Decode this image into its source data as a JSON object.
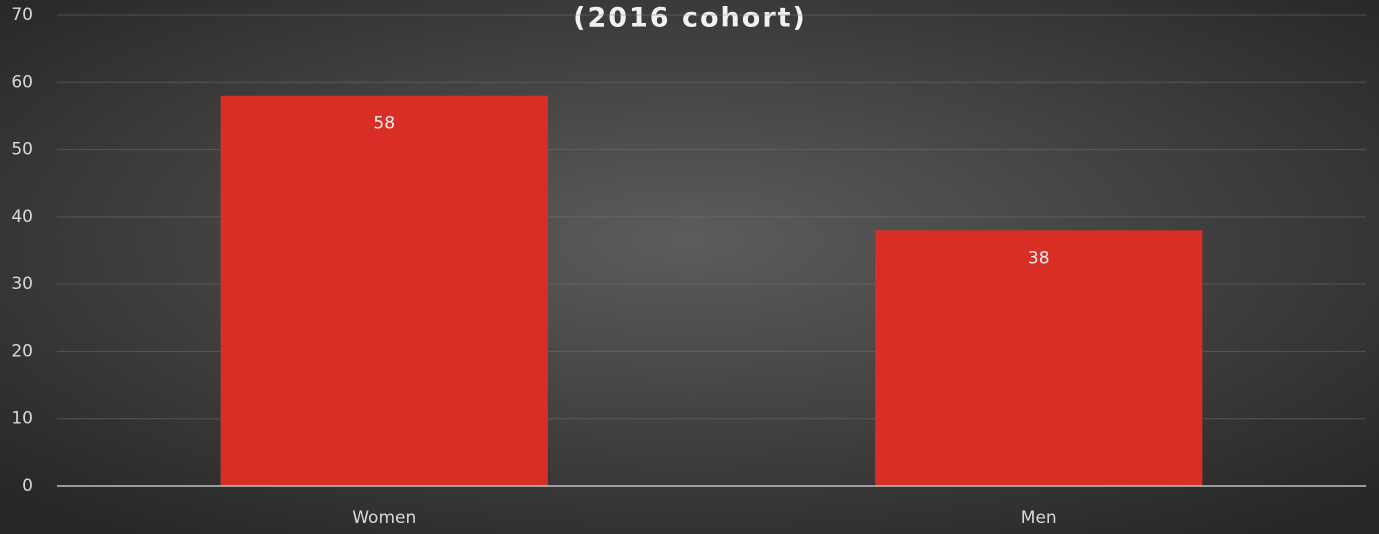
{
  "chart_data": {
    "type": "bar",
    "title": "(2016 cohort)",
    "categories": [
      "Women",
      "Men"
    ],
    "values": [
      58,
      38
    ],
    "color": "#d92e26",
    "ylim": [
      0,
      70
    ],
    "yticks": [
      0,
      10,
      20,
      30,
      40,
      50,
      60,
      70
    ],
    "grid": true
  }
}
